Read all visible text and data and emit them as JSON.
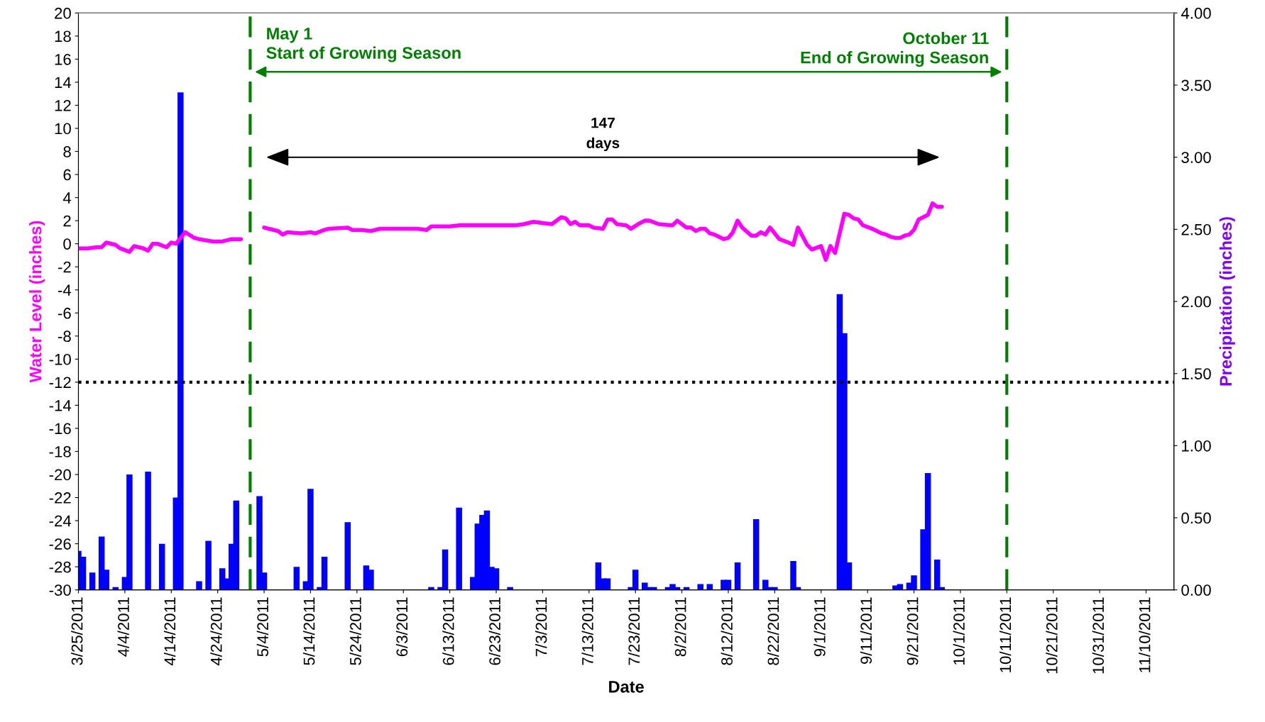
{
  "chart_data": {
    "type": "line",
    "xlabel": "Date",
    "ylabel": "Water Level (inches)",
    "y2label": "Precipitation (inches)",
    "xlim": [
      "2011-03-25",
      "2011-11-16"
    ],
    "xticks": [
      {
        "value": "2011-03-25",
        "label": "3/25/2011"
      },
      {
        "value": "2011-04-04",
        "label": "4/4/2011"
      },
      {
        "value": "2011-04-14",
        "label": "4/14/2011"
      },
      {
        "value": "2011-04-24",
        "label": "4/24/2011"
      },
      {
        "value": "2011-05-04",
        "label": "5/4/2011"
      },
      {
        "value": "2011-05-14",
        "label": "5/14/2011"
      },
      {
        "value": "2011-05-24",
        "label": "5/24/2011"
      },
      {
        "value": "2011-06-03",
        "label": "6/3/2011"
      },
      {
        "value": "2011-06-13",
        "label": "6/13/2011"
      },
      {
        "value": "2011-06-23",
        "label": "6/23/2011"
      },
      {
        "value": "2011-07-03",
        "label": "7/3/2011"
      },
      {
        "value": "2011-07-13",
        "label": "7/13/2011"
      },
      {
        "value": "2011-07-23",
        "label": "7/23/2011"
      },
      {
        "value": "2011-08-02",
        "label": "8/2/2011"
      },
      {
        "value": "2011-08-12",
        "label": "8/12/2011"
      },
      {
        "value": "2011-08-22",
        "label": "8/22/2011"
      },
      {
        "value": "2011-09-01",
        "label": "9/1/2011"
      },
      {
        "value": "2011-09-11",
        "label": "9/11/2011"
      },
      {
        "value": "2011-09-21",
        "label": "9/21/2011"
      },
      {
        "value": "2011-10-01",
        "label": "10/1/2011"
      },
      {
        "value": "2011-10-11",
        "label": "10/11/2011"
      },
      {
        "value": "2011-10-21",
        "label": "10/21/2011"
      },
      {
        "value": "2011-10-31",
        "label": "10/31/2011"
      },
      {
        "value": "2011-11-10",
        "label": "11/10/2011"
      }
    ],
    "ylim": [
      -30,
      20
    ],
    "yticks": [
      -30,
      -28,
      -26,
      -24,
      -22,
      -20,
      -18,
      -16,
      -14,
      -12,
      -10,
      -8,
      -6,
      -4,
      -2,
      0,
      2,
      4,
      6,
      8,
      10,
      12,
      14,
      16,
      18,
      20
    ],
    "y2lim": [
      0,
      4
    ],
    "y2ticks": [
      {
        "value": 0,
        "label": "0.00"
      },
      {
        "value": 0.5,
        "label": "0.50"
      },
      {
        "value": 1,
        "label": "1.00"
      },
      {
        "value": 1.5,
        "label": "1.50"
      },
      {
        "value": 2,
        "label": "2.00"
      },
      {
        "value": 2.5,
        "label": "2.50"
      },
      {
        "value": 3,
        "label": "3.00"
      },
      {
        "value": 3.5,
        "label": "3.50"
      },
      {
        "value": 4,
        "label": "4.00"
      }
    ],
    "grid": false,
    "legend": false,
    "marker": "none",
    "line_style": "solid",
    "series": [
      {
        "color": "#ff00ff",
        "x": [
          "2011-03-25",
          "2011-03-27",
          "2011-03-29",
          "2011-03-30",
          "2011-03-31",
          "2011-04-02",
          "2011-04-03",
          "2011-04-05",
          "2011-04-06",
          "2011-04-08",
          "2011-04-09",
          "2011-04-10",
          "2011-04-11",
          "2011-04-13",
          "2011-04-14",
          "2011-04-15",
          "2011-04-17",
          "2011-04-19",
          "2011-04-20",
          "2011-04-23",
          "2011-04-25",
          "2011-04-27",
          "2011-04-28",
          "2011-04-29",
          "2011-05-01",
          "2011-05-04",
          "2011-05-05",
          "2011-05-07",
          "2011-05-08",
          "2011-05-09",
          "2011-05-12",
          "2011-05-14",
          "2011-05-15",
          "2011-05-17",
          "2011-05-18",
          "2011-05-22",
          "2011-05-23",
          "2011-05-25",
          "2011-05-27",
          "2011-05-29",
          "2011-06-01",
          "2011-06-03",
          "2011-06-06",
          "2011-06-08",
          "2011-06-09",
          "2011-06-13",
          "2011-06-15",
          "2011-06-18",
          "2011-06-20",
          "2011-06-23",
          "2011-06-27",
          "2011-06-29",
          "2011-07-01",
          "2011-07-03",
          "2011-07-05",
          "2011-07-07",
          "2011-07-08",
          "2011-07-09",
          "2011-07-10",
          "2011-07-11",
          "2011-07-13",
          "2011-07-14",
          "2011-07-16",
          "2011-07-17",
          "2011-07-18",
          "2011-07-19",
          "2011-07-21",
          "2011-07-22",
          "2011-07-24",
          "2011-07-25",
          "2011-07-26",
          "2011-07-28",
          "2011-07-31",
          "2011-08-01",
          "2011-08-03",
          "2011-08-04",
          "2011-08-05",
          "2011-08-06",
          "2011-08-07",
          "2011-08-08",
          "2011-08-09",
          "2011-08-11",
          "2011-08-12",
          "2011-08-13",
          "2011-08-14",
          "2011-08-15",
          "2011-08-17",
          "2011-08-18",
          "2011-08-19",
          "2011-08-20",
          "2011-08-21",
          "2011-08-22",
          "2011-08-23",
          "2011-08-25",
          "2011-08-26",
          "2011-08-27",
          "2011-08-29",
          "2011-08-30",
          "2011-09-01",
          "2011-09-02",
          "2011-09-03",
          "2011-09-04",
          "2011-09-06",
          "2011-09-07",
          "2011-09-08",
          "2011-09-09",
          "2011-09-10",
          "2011-09-12",
          "2011-09-13",
          "2011-09-14",
          "2011-09-15",
          "2011-09-16",
          "2011-09-17",
          "2011-09-18",
          "2011-09-19",
          "2011-09-20",
          "2011-09-21",
          "2011-09-22",
          "2011-09-23",
          "2011-09-24",
          "2011-09-25",
          "2011-09-26",
          "2011-09-27"
        ],
        "values": [
          -0.4,
          -0.4,
          -0.3,
          -0.3,
          0.1,
          -0.1,
          -0.4,
          -0.7,
          -0.2,
          -0.4,
          -0.6,
          0.0,
          0.0,
          -0.3,
          0.1,
          0.0,
          1.0,
          0.5,
          0.4,
          0.2,
          0.2,
          0.4,
          0.4,
          0.4,
          null,
          1.4,
          1.3,
          1.1,
          0.8,
          1.0,
          0.9,
          1.0,
          0.9,
          1.2,
          1.3,
          1.4,
          1.2,
          1.2,
          1.1,
          1.3,
          1.3,
          1.3,
          1.3,
          1.2,
          1.5,
          1.5,
          1.6,
          1.6,
          1.6,
          1.6,
          1.6,
          1.7,
          1.9,
          1.8,
          1.7,
          2.3,
          2.2,
          1.7,
          1.9,
          1.6,
          1.6,
          1.4,
          1.3,
          2.1,
          2.1,
          1.7,
          1.6,
          1.3,
          1.8,
          2.0,
          2.0,
          1.7,
          1.6,
          2.0,
          1.4,
          1.4,
          1.1,
          1.3,
          1.3,
          0.9,
          0.8,
          0.4,
          0.5,
          1.0,
          2.0,
          1.4,
          0.7,
          0.7,
          1.0,
          0.8,
          1.4,
          0.9,
          0.4,
          0.1,
          -0.1,
          1.4,
          -0.1,
          -0.5,
          -0.2,
          -1.4,
          -0.2,
          -0.8,
          2.6,
          2.5,
          2.2,
          2.1,
          1.6,
          1.3,
          1.1,
          0.9,
          0.8,
          0.6,
          0.5,
          0.5,
          0.7,
          0.8,
          1.2,
          2.1,
          2.3,
          2.5,
          3.5,
          3.2,
          3.2
        ]
      },
      {
        "type": "bar",
        "axis": "y2",
        "color": "#0000ff",
        "x": [
          "2011-03-25",
          "2011-03-26",
          "2011-03-28",
          "2011-03-30",
          "2011-03-31",
          "2011-04-02",
          "2011-04-04",
          "2011-04-05",
          "2011-04-09",
          "2011-04-12",
          "2011-04-15",
          "2011-04-16",
          "2011-04-20",
          "2011-04-22",
          "2011-04-25",
          "2011-04-26",
          "2011-04-27",
          "2011-04-28",
          "2011-05-03",
          "2011-05-04",
          "2011-05-11",
          "2011-05-13",
          "2011-05-14",
          "2011-05-16",
          "2011-05-17",
          "2011-05-22",
          "2011-05-26",
          "2011-05-27",
          "2011-06-09",
          "2011-06-11",
          "2011-06-12",
          "2011-06-15",
          "2011-06-18",
          "2011-06-19",
          "2011-06-20",
          "2011-06-21",
          "2011-06-22",
          "2011-06-23",
          "2011-06-26",
          "2011-07-15",
          "2011-07-16",
          "2011-07-17",
          "2011-07-22",
          "2011-07-23",
          "2011-07-25",
          "2011-07-26",
          "2011-07-27",
          "2011-07-30",
          "2011-07-31",
          "2011-08-01",
          "2011-08-03",
          "2011-08-06",
          "2011-08-08",
          "2011-08-11",
          "2011-08-12",
          "2011-08-14",
          "2011-08-18",
          "2011-08-20",
          "2011-08-21",
          "2011-08-22",
          "2011-08-26",
          "2011-08-27",
          "2011-09-05",
          "2011-09-06",
          "2011-09-07",
          "2011-09-17",
          "2011-09-18",
          "2011-09-20",
          "2011-09-21",
          "2011-09-23",
          "2011-09-24",
          "2011-09-26",
          "2011-09-27"
        ],
        "values": [
          0.27,
          0.23,
          0.12,
          0.37,
          0.14,
          0.02,
          0.09,
          0.8,
          0.82,
          0.32,
          0.64,
          3.45,
          0.06,
          0.34,
          0.15,
          0.08,
          0.32,
          0.62,
          0.65,
          0.12,
          0.16,
          0.06,
          0.7,
          0.02,
          0.23,
          0.47,
          0.17,
          0.14,
          0.02,
          0.02,
          0.28,
          0.57,
          0.09,
          0.46,
          0.52,
          0.55,
          0.16,
          0.15,
          0.02,
          0.19,
          0.08,
          0.08,
          0.02,
          0.14,
          0.05,
          0.02,
          0.02,
          0.02,
          0.04,
          0.02,
          0.02,
          0.04,
          0.04,
          0.07,
          0.07,
          0.19,
          0.49,
          0.07,
          0.02,
          0.02,
          0.2,
          0.02,
          2.05,
          1.78,
          0.19,
          0.03,
          0.04,
          0.05,
          0.1,
          0.42,
          0.81,
          0.21,
          0.02
        ]
      }
    ],
    "ref_lines": [
      {
        "axis": "y",
        "value": -12,
        "color": "#000000",
        "line_style": "dotted"
      },
      {
        "axis": "x",
        "value": "2011-05-01",
        "color": "#008000",
        "line_style": "dashed"
      },
      {
        "axis": "x",
        "value": "2011-10-11",
        "color": "#008000",
        "line_style": "dashed"
      }
    ],
    "annotations": [
      "May 1\nStart of Growing Season",
      "October 11\nEnd of Growing Season",
      "147\ndays"
    ]
  }
}
